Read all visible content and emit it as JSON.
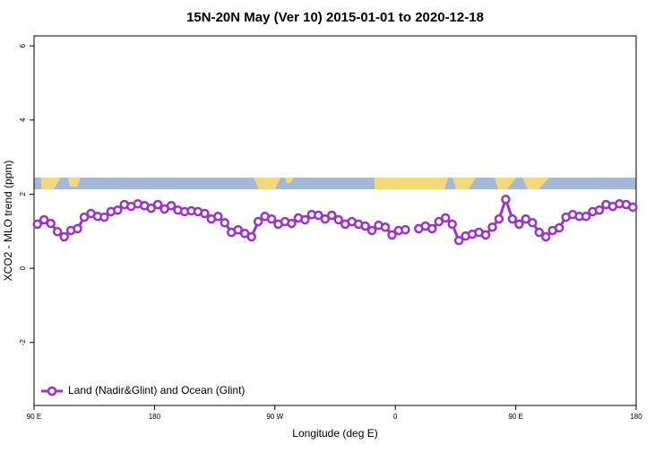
{
  "chart_data": {
    "type": "line",
    "title": "15N-20N May (Ver 10)   2015-01-01 to 2020-12-18",
    "x_label": "Longitude (deg E)",
    "y_label": "XCO2 - MLO trend (ppm)",
    "xlim": [
      90,
      540
    ],
    "ylim": [
      -3.7,
      6.27
    ],
    "xticks": [
      {
        "value": 90,
        "label": "90 E"
      },
      180,
      {
        "value": 270,
        "label": "90 W"
      },
      {
        "value": 360,
        "label": "0"
      },
      {
        "value": 450,
        "label": "90 E"
      },
      {
        "value": 540,
        "label": "180"
      }
    ],
    "yticks": [
      -2,
      0,
      2,
      4,
      6
    ],
    "legend": "bottom-left",
    "x": [
      92.5,
      97.5,
      102.5,
      107.5,
      112.5,
      117.5,
      122.5,
      127.5,
      132.5,
      137.5,
      142.5,
      147.5,
      152.5,
      157.5,
      162.5,
      167.5,
      172.5,
      177.5,
      182.5,
      187.5,
      192.5,
      197.5,
      202.5,
      207.5,
      212.5,
      217.5,
      222.5,
      227.5,
      232.5,
      237.5,
      242.5,
      247.5,
      252.5,
      257.5,
      262.5,
      267.5,
      272.5,
      277.5,
      282.5,
      287.5,
      292.5,
      297.5,
      302.5,
      307.5,
      312.5,
      317.5,
      322.5,
      327.5,
      332.5,
      337.5,
      342.5,
      347.5,
      352.5,
      357.5,
      362.5,
      367.5,
      372.5,
      377.5,
      382.5,
      387.5,
      392.5,
      397.5,
      402.5,
      407.5,
      412.5,
      417.5,
      422.5,
      427.5,
      432.5,
      437.5,
      442.5,
      447.5,
      452.5,
      457.5,
      462.5,
      467.5,
      472.5,
      477.5,
      482.5,
      487.5,
      492.5,
      497.5,
      502.5,
      507.5,
      512.5,
      517.5,
      522.5,
      527.5,
      532.5,
      537.5
    ],
    "series": [
      {
        "name": "Land (Nadir&Glint) and Ocean (Glint)",
        "color": "#9a32cd",
        "values": [
          1.19,
          1.31,
          1.21,
          0.99,
          0.85,
          1.02,
          1.07,
          1.38,
          1.48,
          1.4,
          1.38,
          1.53,
          1.57,
          1.72,
          1.67,
          1.74,
          1.69,
          1.62,
          1.72,
          1.6,
          1.69,
          1.57,
          1.53,
          1.55,
          1.53,
          1.48,
          1.33,
          1.4,
          1.23,
          0.97,
          1.04,
          0.94,
          0.85,
          1.26,
          1.4,
          1.33,
          1.19,
          1.26,
          1.21,
          1.36,
          1.31,
          1.45,
          1.43,
          1.33,
          1.43,
          1.31,
          1.19,
          1.26,
          1.19,
          1.14,
          1.02,
          1.16,
          1.11,
          0.9,
          1.02,
          1.04,
          null,
          1.07,
          1.14,
          1.07,
          1.26,
          1.36,
          1.19,
          0.75,
          0.87,
          0.92,
          0.97,
          0.9,
          1.11,
          1.33,
          1.86,
          1.33,
          1.19,
          1.33,
          1.23,
          0.97,
          0.85,
          1.02,
          1.09,
          1.38,
          1.45,
          1.4,
          1.4,
          1.53,
          1.57,
          1.72,
          1.67,
          1.74,
          1.72,
          1.65
        ]
      }
    ]
  }
}
